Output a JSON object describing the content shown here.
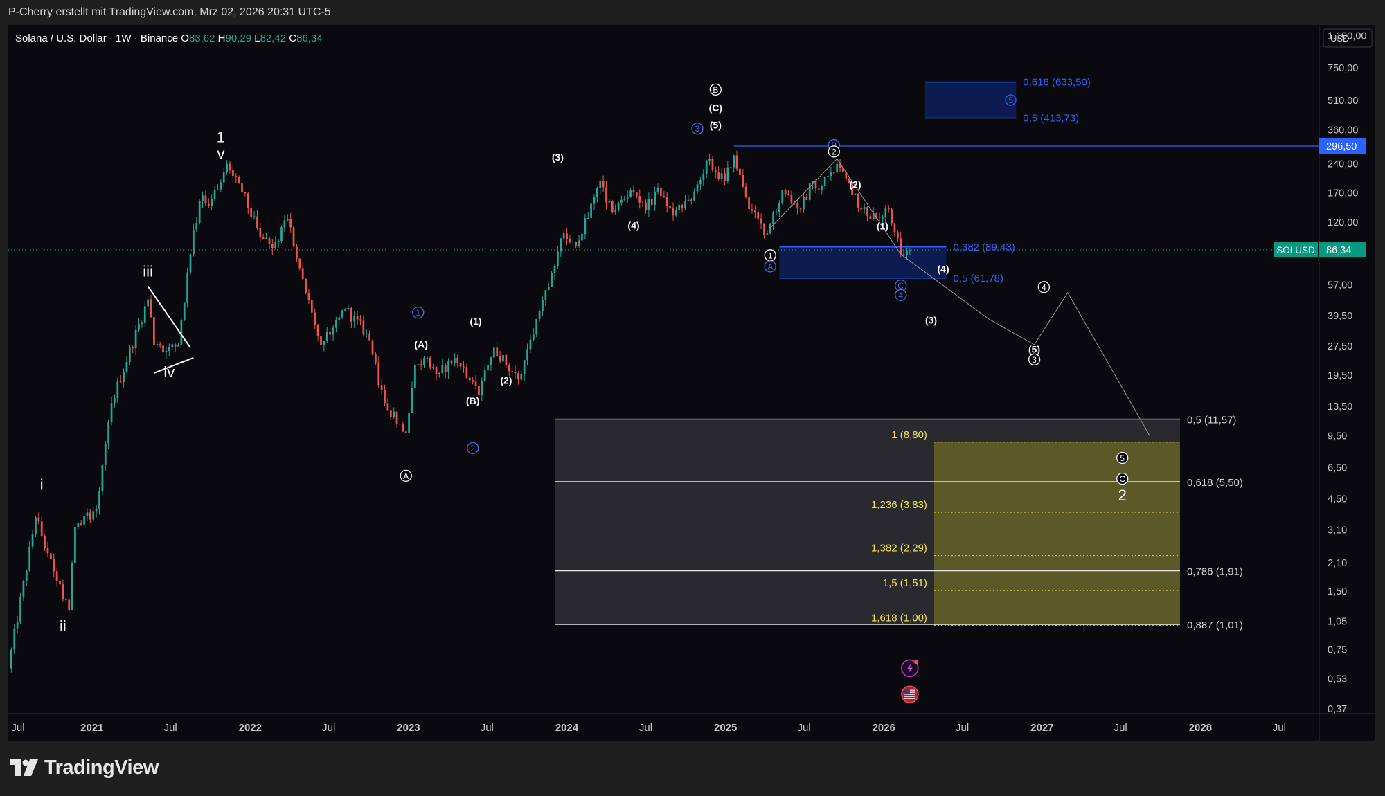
{
  "header": {
    "attribution": "P-Cherry erstellt mit TradingView.com, Mrz 02, 2026 20:31 UTC-5"
  },
  "footer": {
    "brand": "TradingView"
  },
  "chart_data": {
    "type": "candlestick",
    "symbol_line": "Solana / U.S. Dollar · 1W · Binance",
    "ohlc": {
      "O": "83,62",
      "H": "90,29",
      "L": "82,42",
      "C": "86,34"
    },
    "currency": "USD",
    "scale": "log",
    "x_range": [
      "2020-06-22",
      "2028-10-01"
    ],
    "y_range": [
      0.35,
      1250
    ],
    "y_ticks": [
      {
        "v": 1100,
        "t": "1.100,00"
      },
      {
        "v": 750,
        "t": "750,00"
      },
      {
        "v": 510,
        "t": "510,00"
      },
      {
        "v": 360,
        "t": "360,00"
      },
      {
        "v": 240,
        "t": "240,00"
      },
      {
        "v": 170,
        "t": "170,00"
      },
      {
        "v": 120,
        "t": "120,00"
      },
      {
        "v": 57,
        "t": "57,00"
      },
      {
        "v": 39.5,
        "t": "39,50"
      },
      {
        "v": 27.5,
        "t": "27,50"
      },
      {
        "v": 19.5,
        "t": "19,50"
      },
      {
        "v": 13.5,
        "t": "13,50"
      },
      {
        "v": 9.5,
        "t": "9,50"
      },
      {
        "v": 6.5,
        "t": "6,50"
      },
      {
        "v": 4.5,
        "t": "4,50"
      },
      {
        "v": 3.1,
        "t": "3,10"
      },
      {
        "v": 2.1,
        "t": "2,10"
      },
      {
        "v": 1.5,
        "t": "1,50"
      },
      {
        "v": 1.05,
        "t": "1,05"
      },
      {
        "v": 0.75,
        "t": "0,75"
      },
      {
        "v": 0.53,
        "t": "0,53"
      },
      {
        "v": 0.37,
        "t": "0,37"
      }
    ],
    "x_ticks": [
      {
        "d": "2020-07-01",
        "t": "Jul",
        "b": false
      },
      {
        "d": "2021-01-01",
        "t": "2021",
        "b": true
      },
      {
        "d": "2021-07-01",
        "t": "Jul",
        "b": false
      },
      {
        "d": "2022-01-01",
        "t": "2022",
        "b": true
      },
      {
        "d": "2022-07-01",
        "t": "Jul",
        "b": false
      },
      {
        "d": "2023-01-01",
        "t": "2023",
        "b": true
      },
      {
        "d": "2023-07-01",
        "t": "Jul",
        "b": false
      },
      {
        "d": "2024-01-01",
        "t": "2024",
        "b": true
      },
      {
        "d": "2024-07-01",
        "t": "Jul",
        "b": false
      },
      {
        "d": "2025-01-01",
        "t": "2025",
        "b": true
      },
      {
        "d": "2025-07-01",
        "t": "Jul",
        "b": false
      },
      {
        "d": "2026-01-01",
        "t": "2026",
        "b": true
      },
      {
        "d": "2026-07-01",
        "t": "Jul",
        "b": false
      },
      {
        "d": "2027-01-01",
        "t": "2027",
        "b": true
      },
      {
        "d": "2027-07-01",
        "t": "Jul",
        "b": false
      },
      {
        "d": "2028-01-01",
        "t": "2028",
        "b": true
      },
      {
        "d": "2028-07-01",
        "t": "Jul",
        "b": false
      }
    ],
    "price_anchors": [
      [
        "2020-06-22",
        0.6
      ],
      [
        "2020-08-24",
        3.6
      ],
      [
        "2020-10-05",
        1.9
      ],
      [
        "2020-11-09",
        1.2
      ],
      [
        "2020-11-23",
        3.2
      ],
      [
        "2021-01-11",
        4.0
      ],
      [
        "2021-02-15",
        14.0
      ],
      [
        "2021-05-10",
        48.0
      ],
      [
        "2021-05-24",
        28.0
      ],
      [
        "2021-06-21",
        26.0
      ],
      [
        "2021-07-19",
        28.0
      ],
      [
        "2021-08-23",
        110.0
      ],
      [
        "2021-09-13",
        165.0
      ],
      [
        "2021-09-27",
        145.0
      ],
      [
        "2021-11-08",
        240.0
      ],
      [
        "2021-12-06",
        190.0
      ],
      [
        "2022-01-24",
        100.0
      ],
      [
        "2022-02-21",
        88.0
      ],
      [
        "2022-03-28",
        125.0
      ],
      [
        "2022-05-09",
        52.0
      ],
      [
        "2022-06-13",
        28.0
      ],
      [
        "2022-08-08",
        43.0
      ],
      [
        "2022-09-26",
        32.0
      ],
      [
        "2022-11-07",
        14.0
      ],
      [
        "2022-12-26",
        9.8
      ],
      [
        "2023-01-16",
        22.0
      ],
      [
        "2023-02-13",
        24.0
      ],
      [
        "2023-03-13",
        20.0
      ],
      [
        "2023-04-17",
        24.0
      ],
      [
        "2023-06-12",
        15.5
      ],
      [
        "2023-07-17",
        27.0
      ],
      [
        "2023-09-11",
        18.5
      ],
      [
        "2023-10-23",
        38.0
      ],
      [
        "2023-12-25",
        105.0
      ],
      [
        "2024-01-22",
        90.0
      ],
      [
        "2024-03-18",
        195.0
      ],
      [
        "2024-04-15",
        135.0
      ],
      [
        "2024-05-27",
        175.0
      ],
      [
        "2024-07-01",
        138.0
      ],
      [
        "2024-07-29",
        180.0
      ],
      [
        "2024-09-02",
        130.0
      ],
      [
        "2024-10-14",
        155.0
      ],
      [
        "2024-11-18",
        250.0
      ],
      [
        "2024-12-30",
        195.0
      ],
      [
        "2025-01-20",
        265.0
      ],
      [
        "2025-02-24",
        140.0
      ],
      [
        "2025-04-07",
        105.0
      ],
      [
        "2025-05-12",
        175.0
      ],
      [
        "2025-06-23",
        140.0
      ],
      [
        "2025-07-21",
        195.0
      ],
      [
        "2025-08-11",
        185.0
      ],
      [
        "2025-09-15",
        240.0
      ],
      [
        "2025-10-13",
        190.0
      ],
      [
        "2025-11-10",
        140.0
      ],
      [
        "2025-12-15",
        125.0
      ],
      [
        "2026-01-12",
        140.0
      ],
      [
        "2026-02-09",
        82.0
      ],
      [
        "2026-03-02",
        86.34
      ]
    ],
    "current_price": {
      "value": 86.34,
      "symbol": "SOLUSD",
      "label": "86,34"
    },
    "level_line": {
      "value": 296.5,
      "label": "296,50",
      "from": "2025-01-20"
    },
    "blue_zones": [
      {
        "from": "2025-05-05",
        "to": "2026-05-25",
        "top": 89.43,
        "bottom": 61.78,
        "labels": [
          {
            "v": 89.43,
            "t": "0,382 (89,43)"
          },
          {
            "v": 61.78,
            "t": "0,5 (61,78)"
          }
        ],
        "circle": null
      },
      {
        "from": "2026-04-06",
        "to": "2026-11-02",
        "top": 633.5,
        "bottom": 413.73,
        "labels": [
          {
            "v": 633.5,
            "t": "0,618 (633,50)"
          },
          {
            "v": 413.73,
            "t": "0,5 (413,73)"
          }
        ],
        "circle": "5"
      }
    ],
    "fib_retracement": {
      "from": "2023-12-04",
      "to": "2027-11-15",
      "levels": [
        {
          "v": 11.57,
          "t": "0,5 (11,57)"
        },
        {
          "v": 5.5,
          "t": "0,618 (5,50)"
        },
        {
          "v": 1.91,
          "t": "0,786 (1,91)"
        },
        {
          "v": 1.01,
          "t": "0,887 (1,01)"
        }
      ]
    },
    "fib_extension": {
      "from": "2026-04-27",
      "to": "2027-11-15",
      "levels": [
        {
          "v": 8.8,
          "t": "1 (8,80)"
        },
        {
          "v": 3.83,
          "t": "1,236 (3,83)"
        },
        {
          "v": 2.29,
          "t": "1,382 (2,29)"
        },
        {
          "v": 1.51,
          "t": "1,5 (1,51)"
        },
        {
          "v": 1.0,
          "t": "1,618 (1,00)"
        }
      ]
    },
    "triangle": [
      [
        "2021-05-10",
        56
      ],
      [
        "2021-08-16",
        27
      ],
      [
        "2021-05-24",
        20
      ],
      [
        "2021-08-23",
        24
      ]
    ],
    "projection_path": [
      [
        "2025-04-14",
        112
      ],
      [
        "2025-09-15",
        255
      ],
      [
        "2026-02-09",
        82
      ],
      [
        "2026-08-31",
        38
      ],
      [
        "2026-12-14",
        28
      ],
      [
        "2027-03-01",
        52
      ],
      [
        "2027-09-06",
        9.5
      ]
    ],
    "wave_labels": [
      {
        "d": "2021-10-25",
        "v": 310,
        "t": "1",
        "s": "big",
        "c": "#ffffff"
      },
      {
        "d": "2021-10-25",
        "v": 255,
        "t": "v",
        "s": "big",
        "c": "#ffffff"
      },
      {
        "d": "2021-05-10",
        "v": 63,
        "t": "iii",
        "s": "big",
        "c": "#ffffff"
      },
      {
        "d": "2021-06-28",
        "v": 19,
        "t": "iv",
        "s": "big",
        "c": "#ffffff"
      },
      {
        "d": "2020-09-07",
        "v": 5.0,
        "t": "i",
        "s": "big",
        "c": "#ffffff"
      },
      {
        "d": "2020-10-26",
        "v": 0.93,
        "t": "ii",
        "s": "big",
        "c": "#ffffff"
      },
      {
        "d": "2024-12-09",
        "v": 450,
        "t": "(C)",
        "s": "small",
        "c": "#ffffff"
      },
      {
        "d": "2024-12-09",
        "v": 365,
        "t": "(5)",
        "s": "small",
        "c": "#ffffff"
      },
      {
        "d": "2023-12-11",
        "v": 250,
        "t": "(3)",
        "s": "small",
        "c": "#ffffff"
      },
      {
        "d": "2024-06-03",
        "v": 111,
        "t": "(4)",
        "s": "small",
        "c": "#ffffff"
      },
      {
        "d": "2025-10-27",
        "v": 180,
        "t": "(2)",
        "s": "small",
        "c": "#ffffff"
      },
      {
        "d": "2025-12-29",
        "v": 110,
        "t": "(1)",
        "s": "small",
        "c": "#ffffff"
      },
      {
        "d": "2026-05-18",
        "v": 66,
        "t": "(4)",
        "s": "small",
        "c": "#ffffff"
      },
      {
        "d": "2026-04-20",
        "v": 36,
        "t": "(3)",
        "s": "small",
        "c": "#ffffff"
      },
      {
        "d": "2026-12-14",
        "v": 25.5,
        "t": "(5)",
        "s": "small",
        "c": "#ffffff"
      },
      {
        "d": "2023-01-30",
        "v": 27,
        "t": "(A)",
        "s": "small",
        "c": "#ffffff"
      },
      {
        "d": "2023-05-29",
        "v": 13.8,
        "t": "(B)",
        "s": "small",
        "c": "#ffffff"
      },
      {
        "d": "2023-06-05",
        "v": 35.5,
        "t": "(1)",
        "s": "small",
        "c": "#ffffff"
      },
      {
        "d": "2023-08-14",
        "v": 17.6,
        "t": "(2)",
        "s": "small",
        "c": "#ffffff"
      },
      {
        "d": "2027-07-05",
        "v": 4.4,
        "t": "2",
        "s": "big",
        "c": "#ffffff"
      }
    ],
    "circle_labels": [
      {
        "d": "2024-12-09",
        "v": 580,
        "t": "B",
        "c": "#ffffff"
      },
      {
        "d": "2024-10-28",
        "v": 365,
        "t": "3",
        "c": "#3f6fe0"
      },
      {
        "d": "2025-09-08",
        "v": 300,
        "t": "B",
        "c": "#3f6fe0"
      },
      {
        "d": "2025-09-08",
        "v": 278,
        "t": "2",
        "c": "#ffffff"
      },
      {
        "d": "2025-04-14",
        "v": 81,
        "t": "1",
        "c": "#ffffff"
      },
      {
        "d": "2025-04-14",
        "v": 71,
        "t": "A",
        "c": "#3f6fe0"
      },
      {
        "d": "2026-02-09",
        "v": 56.5,
        "t": "C",
        "c": "#3f6fe0"
      },
      {
        "d": "2026-02-09",
        "v": 50.5,
        "t": "4",
        "c": "#3f6fe0"
      },
      {
        "d": "2026-12-14",
        "v": 23.5,
        "t": "3",
        "c": "#ffffff"
      },
      {
        "d": "2027-01-05",
        "v": 55.5,
        "t": "4",
        "c": "#ffffff"
      },
      {
        "d": "2023-01-23",
        "v": 41,
        "t": "1",
        "c": "#3f6fe0"
      },
      {
        "d": "2023-05-29",
        "v": 8.2,
        "t": "2",
        "c": "#3f6fe0"
      },
      {
        "d": "2022-12-26",
        "v": 5.9,
        "t": "A",
        "c": "#ffffff"
      },
      {
        "d": "2027-07-05",
        "v": 7.3,
        "t": "5",
        "c": "#ffffff"
      },
      {
        "d": "2027-07-05",
        "v": 5.7,
        "t": "C",
        "c": "#ffffff"
      }
    ],
    "event_icons": [
      {
        "d": "2026-03-02",
        "v": 0.6,
        "name": "earnings-flash-icon"
      },
      {
        "d": "2026-03-02",
        "v": 0.44,
        "name": "us-flag-icon"
      }
    ],
    "colors": {
      "up": "#26a69a",
      "down": "#ef5350",
      "accent_blue": "#2962ff",
      "fib_yellow": "#d4c94a",
      "fib_text": "#f2e45c",
      "text": "#d1d4dc",
      "price_badge": "#089981",
      "axis_text": "#c7c7c7"
    }
  }
}
